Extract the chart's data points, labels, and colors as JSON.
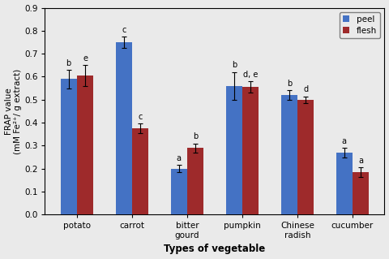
{
  "categories": [
    "potato",
    "carrot",
    "bitter\ngourd",
    "pumpkin",
    "Chinese\nradish",
    "cucumber"
  ],
  "peel_values": [
    0.59,
    0.75,
    0.2,
    0.56,
    0.52,
    0.27
  ],
  "flesh_values": [
    0.605,
    0.375,
    0.29,
    0.555,
    0.5,
    0.185
  ],
  "peel_errors": [
    0.04,
    0.025,
    0.015,
    0.06,
    0.02,
    0.02
  ],
  "flesh_errors": [
    0.045,
    0.02,
    0.02,
    0.025,
    0.015,
    0.02
  ],
  "peel_labels": [
    "b",
    "c",
    "a",
    "b",
    "b",
    "a"
  ],
  "flesh_labels": [
    "e",
    "c",
    "b",
    "d, e",
    "d",
    "a"
  ],
  "peel_color": "#4472C4",
  "flesh_color": "#9E2A2B",
  "ylabel": "FRAP value\n(mM Fe²⁺/ g extract)",
  "xlabel": "Types of vegetable",
  "ylim": [
    0,
    0.9
  ],
  "yticks": [
    0,
    0.1,
    0.2,
    0.3,
    0.4,
    0.5,
    0.6,
    0.7,
    0.8,
    0.9
  ],
  "legend_labels": [
    "peel",
    "flesh"
  ],
  "bar_width": 0.3,
  "bg_color": "#EAEAEA"
}
